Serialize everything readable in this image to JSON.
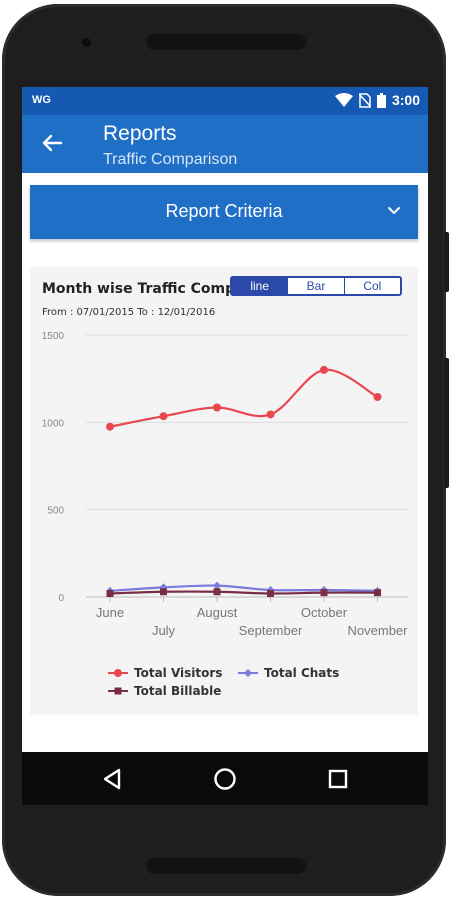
{
  "status_bar": {
    "carrier": "WG",
    "time": "3:00",
    "icons": [
      "wifi-icon",
      "no-sim-icon",
      "battery-icon"
    ]
  },
  "app_bar": {
    "title": "Reports",
    "subtitle": "Traffic Comparison",
    "back_icon": "arrow-left-icon"
  },
  "criteria": {
    "label": "Report Criteria",
    "icon": "chevron-down-icon"
  },
  "chart": {
    "title": "Month wise Traffic Comp",
    "range": "From : 07/01/2015 To : 12/01/2016",
    "toggle": {
      "options": [
        "line",
        "Bar",
        "Col"
      ],
      "active": "line"
    },
    "legend": [
      "Total Visitors",
      "Total Chats",
      "Total Billable"
    ]
  },
  "chart_data": {
    "type": "line",
    "categories": [
      "June",
      "July",
      "August",
      "September",
      "October",
      "November"
    ],
    "series": [
      {
        "name": "Total Visitors",
        "color": "#e8474f",
        "values": [
          975,
          1035,
          1085,
          1045,
          1300,
          1145
        ]
      },
      {
        "name": "Total Chats",
        "color": "#7b7bdb",
        "values": [
          35,
          55,
          65,
          40,
          40,
          35
        ]
      },
      {
        "name": "Total Billable",
        "color": "#7a2e45",
        "values": [
          20,
          30,
          30,
          20,
          25,
          25
        ]
      }
    ],
    "yticks": [
      0,
      500,
      1000,
      1500
    ],
    "ylim": [
      0,
      1500
    ],
    "grid": true,
    "legend_position": "bottom"
  },
  "nav": {
    "back": "triangle-back-icon",
    "home": "circle-home-icon",
    "recents": "square-recents-icon"
  }
}
